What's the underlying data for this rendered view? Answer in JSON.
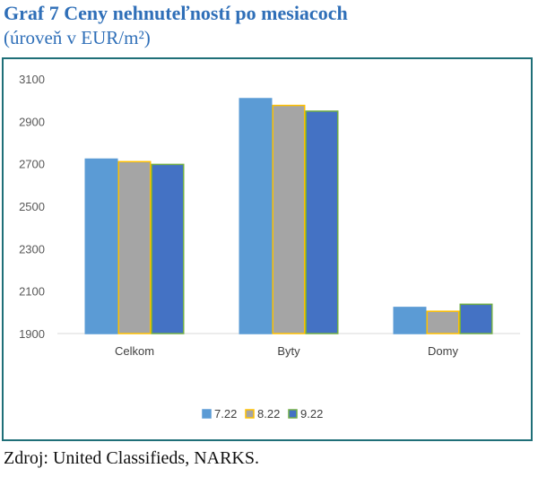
{
  "header": {
    "title": "Graf 7 Ceny nehnuteľností po mesiacoch",
    "subtitle": "(úroveň v EUR/m²)"
  },
  "footer": {
    "source": "Zdroj: United Classifieds, NARKS."
  },
  "colors": {
    "series_fill": [
      "#5b9bd5",
      "#a5a5a5",
      "#4472c4"
    ],
    "series_outline": [
      "#5b9bd5",
      "#ffc000",
      "#70ad47"
    ],
    "title": "#2f6fb8",
    "frame": "#1f6f78"
  },
  "chart_data": {
    "type": "bar",
    "title": "Graf 7 Ceny nehnuteľností po mesiacoch",
    "subtitle": "(úroveň v EUR/m²)",
    "categories": [
      "Celkom",
      "Byty",
      "Domy"
    ],
    "series": [
      {
        "name": "7.22",
        "values": [
          2722,
          3007,
          2023
        ]
      },
      {
        "name": "8.22",
        "values": [
          2710,
          2975,
          2005
        ]
      },
      {
        "name": "9.22",
        "values": [
          2697,
          2948,
          2038
        ]
      }
    ],
    "ylim": [
      1900,
      3100
    ],
    "yticks": [
      1900,
      2100,
      2300,
      2500,
      2700,
      2900,
      3100
    ],
    "grid": false,
    "legend": "bottom",
    "xlabel": "",
    "ylabel": ""
  }
}
